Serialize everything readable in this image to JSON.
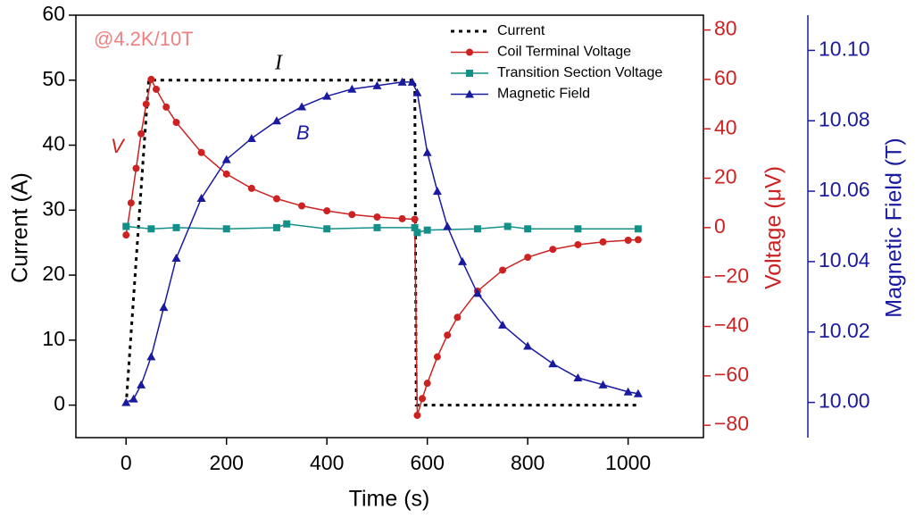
{
  "chart_data": {
    "type": "line",
    "xlabel": "Time (s)",
    "ylabel": "Current (A)",
    "y2label": "Voltage (μV)",
    "y3label": "Magnetic Field (T)",
    "annotations": [
      {
        "text": "@4.2K/10T",
        "color": "#f08080"
      },
      {
        "text": "I",
        "color": "#000000"
      },
      {
        "text": "B",
        "color": "#1a1aa0"
      },
      {
        "text": "V",
        "color": "#cc2222"
      }
    ],
    "xlim": [
      -100,
      1150
    ],
    "xticks": [
      0,
      200,
      400,
      600,
      800,
      1000
    ],
    "ylim": [
      -5,
      60
    ],
    "yticks": [
      0,
      10,
      20,
      30,
      40,
      50,
      60
    ],
    "y2lim": [
      -85,
      86
    ],
    "y2ticks": [
      {
        "value": -80,
        "label": "−80"
      },
      {
        "value": -60,
        "label": "−60"
      },
      {
        "value": -40,
        "label": "−40"
      },
      {
        "value": -20,
        "label": "−20"
      },
      0,
      20,
      40,
      60,
      80
    ],
    "y2color": "#cc2222",
    "y3lim": [
      9.99,
      10.11
    ],
    "y3ticks": [
      {
        "value": 10.0,
        "label": "10.00"
      },
      {
        "value": 10.02,
        "label": "10.02"
      },
      {
        "value": 10.04,
        "label": "10.04"
      },
      {
        "value": 10.06,
        "label": "10.06"
      },
      {
        "value": 10.08,
        "label": "10.08"
      },
      {
        "value": 10.1,
        "label": "10.10"
      }
    ],
    "y3color": "#1a1aa0",
    "legend": "upper right",
    "series": [
      {
        "name": "Current",
        "color": "#000000",
        "style": "dotted",
        "x": [
          0,
          45,
          575,
          578,
          1020
        ],
        "values": [
          0,
          50,
          50,
          0,
          0
        ]
      },
      {
        "name": "Coil Terminal Voltage",
        "color": "#cc2222",
        "marker": "circle",
        "axis": "y2",
        "x": [
          0,
          10,
          20,
          30,
          40,
          50,
          60,
          80,
          100,
          150,
          200,
          250,
          300,
          350,
          400,
          450,
          500,
          550,
          575,
          580,
          590,
          600,
          620,
          640,
          660,
          700,
          750,
          800,
          850,
          900,
          950,
          1000,
          1020
        ],
        "values": [
          -3,
          10,
          24,
          38,
          50,
          60,
          56,
          48.8,
          42.6,
          30.4,
          21.7,
          15.9,
          11.7,
          8.8,
          6.8,
          5.3,
          4.3,
          3.6,
          3.4,
          -76,
          -69.2,
          -63,
          -52.3,
          -43.5,
          -36.3,
          -25.7,
          -17.2,
          -12,
          -8.8,
          -6.9,
          -5.8,
          -5.1,
          -4.9
        ]
      },
      {
        "name": "Transition Section Voltage",
        "color": "#14908a",
        "marker": "square",
        "axis": "y2",
        "x": [
          0,
          50,
          100,
          200,
          300,
          320,
          400,
          500,
          575,
          580,
          600,
          700,
          760,
          800,
          900,
          1020
        ],
        "values": [
          0.5,
          -0.5,
          0,
          -0.5,
          0,
          1.5,
          -0.5,
          0,
          0,
          -2,
          -1,
          -0.5,
          0.5,
          -0.5,
          -0.5,
          -0.5
        ]
      },
      {
        "name": "Magnetic Field",
        "color": "#1a1aa0",
        "marker": "triangle",
        "axis": "y3",
        "x": [
          0,
          15,
          30,
          50,
          75,
          100,
          150,
          200,
          250,
          300,
          350,
          400,
          450,
          500,
          550,
          570,
          580,
          600,
          620,
          640,
          670,
          700,
          750,
          800,
          850,
          900,
          950,
          1000,
          1020
        ],
        "values": [
          10.0,
          10.001,
          10.005,
          10.013,
          10.027,
          10.041,
          10.058,
          10.069,
          10.075,
          10.08,
          10.084,
          10.087,
          10.089,
          10.09,
          10.091,
          10.091,
          10.088,
          10.071,
          10.06,
          10.05,
          10.04,
          10.031,
          10.022,
          10.016,
          10.011,
          10.007,
          10.005,
          10.003,
          10.0025
        ]
      }
    ]
  }
}
